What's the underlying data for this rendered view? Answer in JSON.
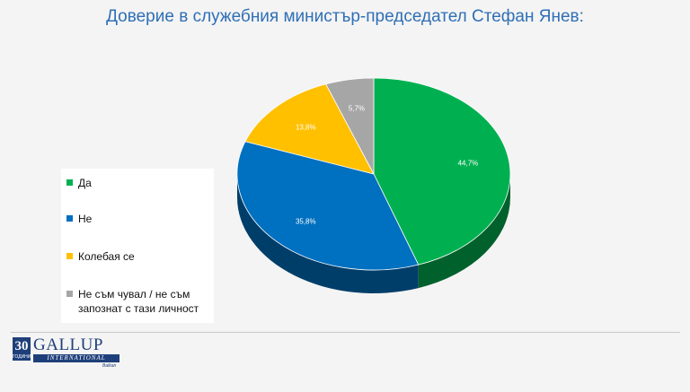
{
  "chart_data": {
    "type": "pie",
    "title": "Доверие в служебния министър-председател Стефан Янев:",
    "slices": [
      {
        "name": "Да",
        "value": 44.7,
        "label": "44,7%",
        "color": "#00b050"
      },
      {
        "name": "Не",
        "value": 35.8,
        "label": "35,8%",
        "color": "#0070c0"
      },
      {
        "name": "Колебая се",
        "value": 13.8,
        "label": "13,8%",
        "color": "#ffc000"
      },
      {
        "name": "Не съм чувал / не съм запознат с тази личност",
        "value": 5.7,
        "label": "5,7%",
        "color": "#a6a6a6"
      }
    ],
    "legend_position": "left"
  },
  "logo": {
    "years_number": "30",
    "years_word": "ГОДИНИ",
    "brand": "GALLUP",
    "international": "INTERNATIONAL",
    "region": "Balkan"
  }
}
